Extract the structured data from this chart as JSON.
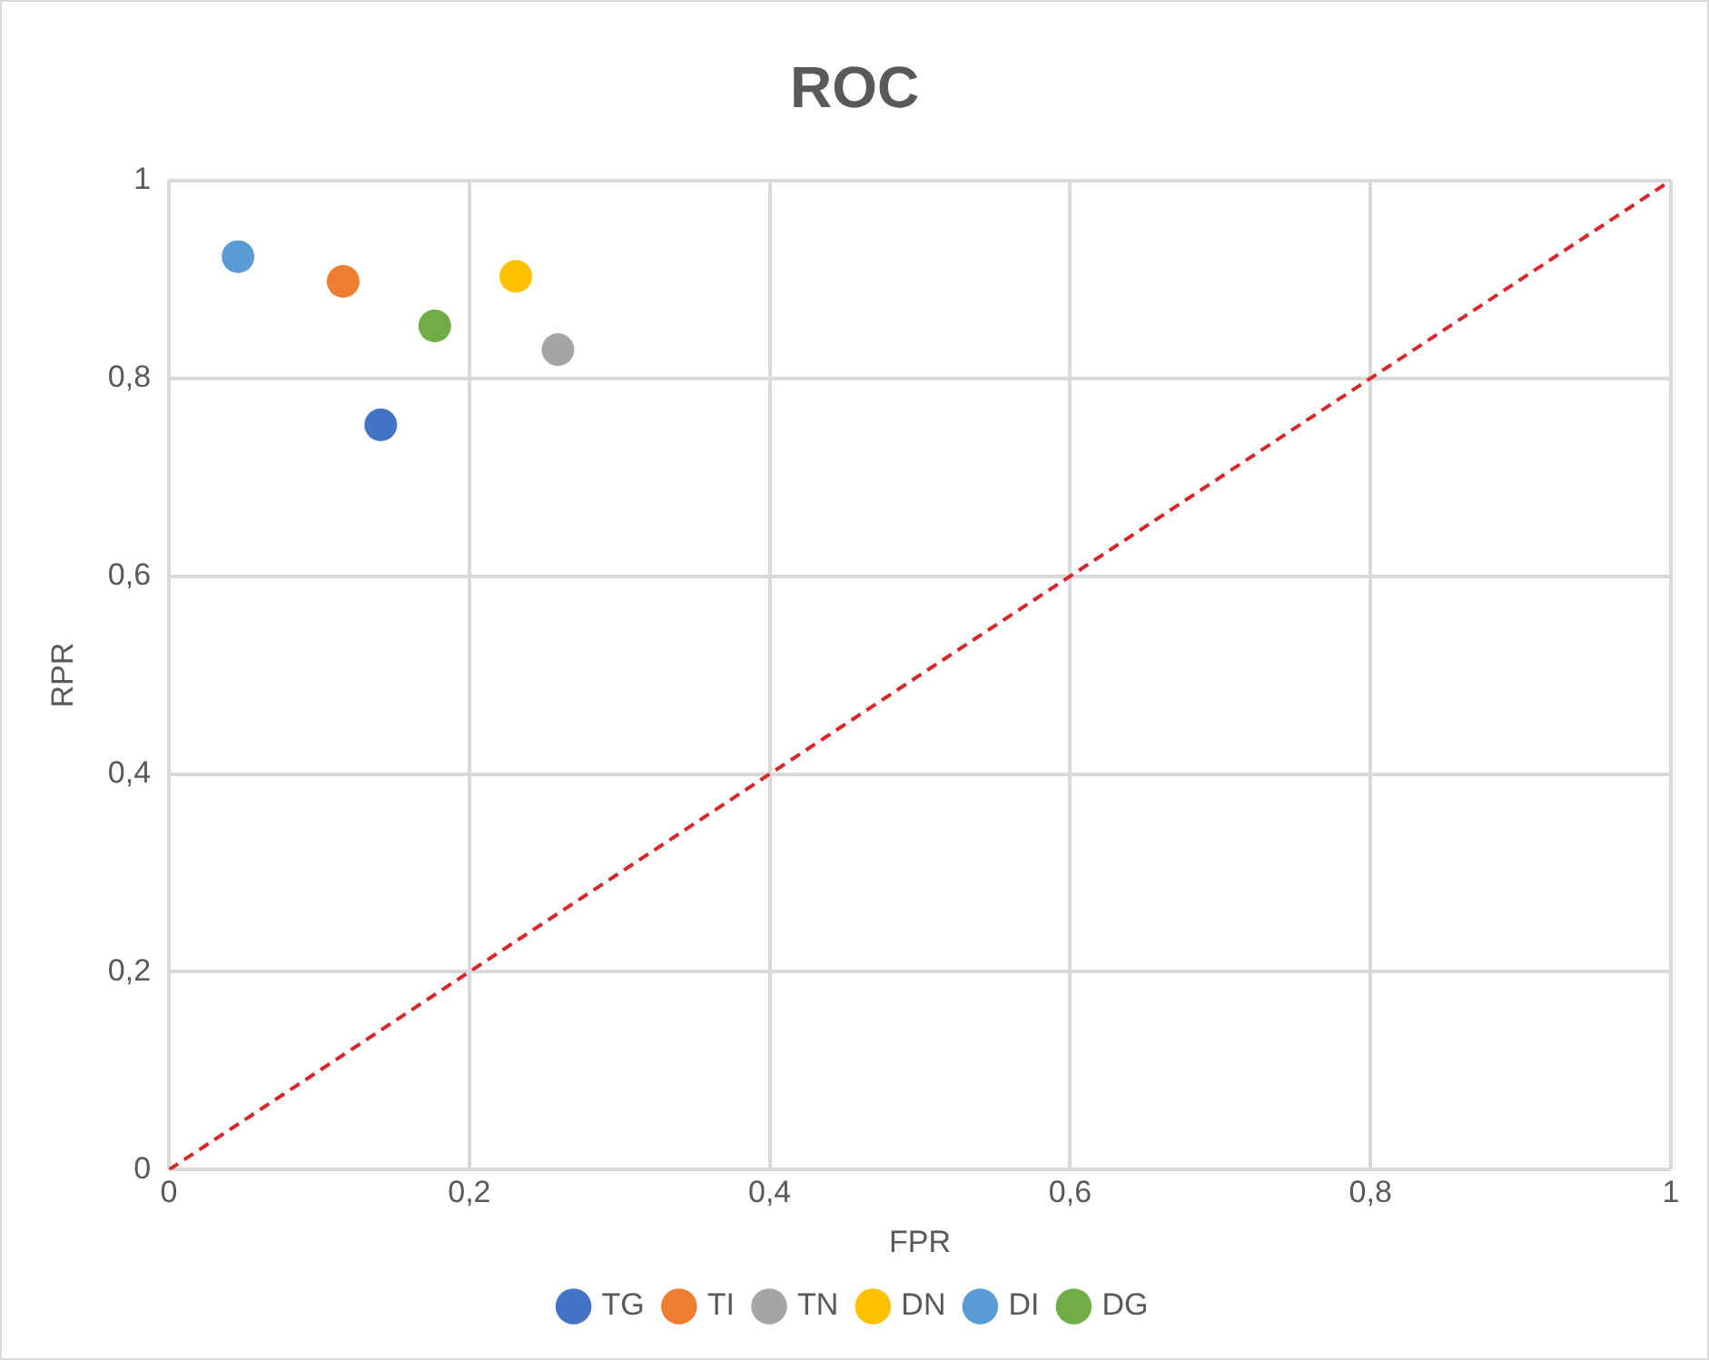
{
  "chart_data": {
    "type": "scatter",
    "title": "ROC",
    "xlabel": "FPR",
    "ylabel": "RPR",
    "xlim": [
      0,
      1
    ],
    "ylim": [
      0,
      1
    ],
    "xticks": [
      {
        "value": 0,
        "label": "0"
      },
      {
        "value": 0.2,
        "label": "0,2"
      },
      {
        "value": 0.4,
        "label": "0,4"
      },
      {
        "value": 0.6,
        "label": "0,6"
      },
      {
        "value": 0.8,
        "label": "0,8"
      },
      {
        "value": 1,
        "label": "1"
      }
    ],
    "yticks": [
      {
        "value": 0,
        "label": "0"
      },
      {
        "value": 0.2,
        "label": "0,2"
      },
      {
        "value": 0.4,
        "label": "0,4"
      },
      {
        "value": 0.6,
        "label": "0,6"
      },
      {
        "value": 0.8,
        "label": "0,8"
      },
      {
        "value": 1,
        "label": "1"
      }
    ],
    "grid": true,
    "legend": "bottom",
    "marker": "circle",
    "series": [
      {
        "name": "TG",
        "color": "#4472c4",
        "x": [
          0.141
        ],
        "values": [
          0.753
        ]
      },
      {
        "name": "TI",
        "color": "#ed7d31",
        "x": [
          0.116
        ],
        "values": [
          0.898
        ]
      },
      {
        "name": "TN",
        "color": "#a5a5a5",
        "x": [
          0.259
        ],
        "values": [
          0.829
        ]
      },
      {
        "name": "DN",
        "color": "#ffc000",
        "x": [
          0.231
        ],
        "values": [
          0.903
        ]
      },
      {
        "name": "DI",
        "color": "#5b9bd5",
        "x": [
          0.046
        ],
        "values": [
          0.923
        ]
      },
      {
        "name": "DG",
        "color": "#70ad47",
        "x": [
          0.177
        ],
        "values": [
          0.853
        ]
      },
      {
        "type": "line",
        "color": "#d9262b",
        "x": [
          0,
          1
        ],
        "values": [
          0,
          1
        ],
        "line_style": "dashed",
        "marker": "none"
      }
    ]
  }
}
